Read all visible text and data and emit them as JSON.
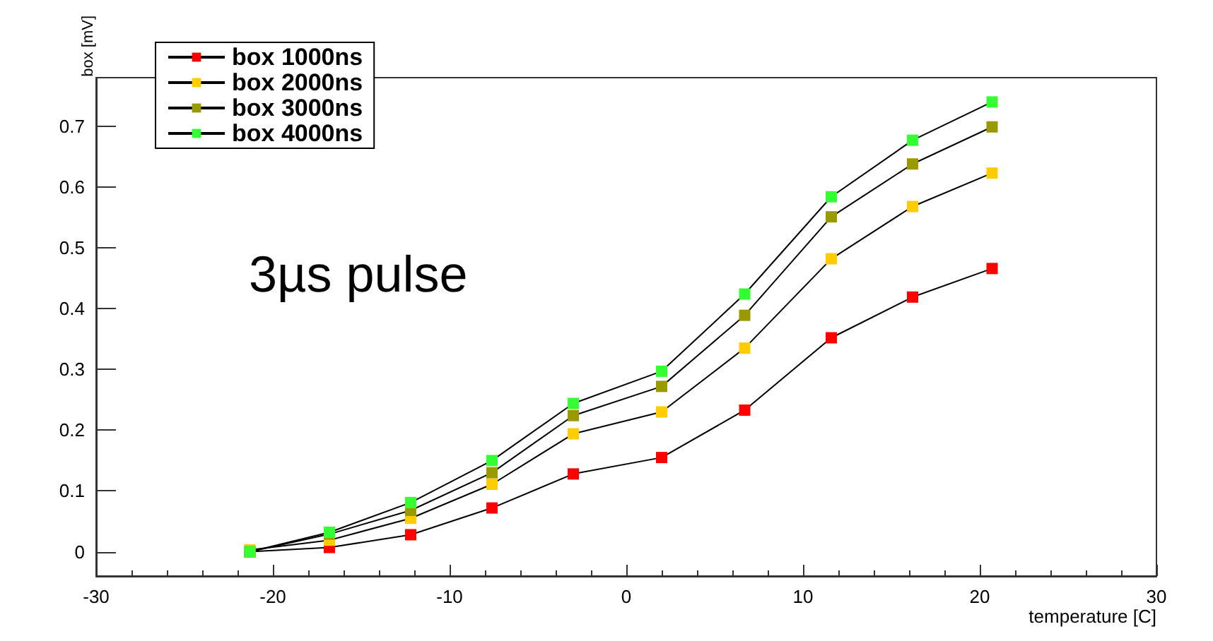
{
  "chart_data": {
    "type": "line",
    "xlabel": "temperature [C]",
    "ylabel": "box [mV]",
    "annotations": [
      "3µs pulse"
    ],
    "x": [
      -21.3,
      -16.8,
      -12.2,
      -7.6,
      -3.0,
      2.0,
      6.7,
      11.6,
      16.2,
      20.7
    ],
    "series": [
      {
        "name": "box 1000ns",
        "color": "#ff0000",
        "values": [
          0,
          0.007,
          0.028,
          0.072,
          0.128,
          0.155,
          0.233,
          0.352,
          0.419,
          0.466
        ]
      },
      {
        "name": "box 2000ns",
        "color": "#ffcc00",
        "values": [
          0.003,
          0.019,
          0.055,
          0.111,
          0.194,
          0.23,
          0.335,
          0.482,
          0.568,
          0.623
        ]
      },
      {
        "name": "box 3000ns",
        "color": "#999900",
        "values": [
          0,
          0.029,
          0.068,
          0.13,
          0.224,
          0.272,
          0.389,
          0.551,
          0.638,
          0.699
        ]
      },
      {
        "name": "box 4000ns",
        "color": "#33ff33",
        "values": [
          0,
          0.032,
          0.081,
          0.15,
          0.244,
          0.297,
          0.424,
          0.584,
          0.677,
          0.74
        ]
      }
    ],
    "xlim": [
      -30,
      30
    ],
    "xticks": [
      -30,
      -20,
      -10,
      0,
      10,
      20,
      30
    ],
    "ylim": [
      -0.04,
      0.78
    ],
    "yticks": [
      0,
      0.1,
      0.2,
      0.3,
      0.4,
      0.5,
      0.6,
      0.7
    ],
    "grid": false,
    "legend": "top left",
    "marker": "square",
    "line_style": "solid"
  }
}
